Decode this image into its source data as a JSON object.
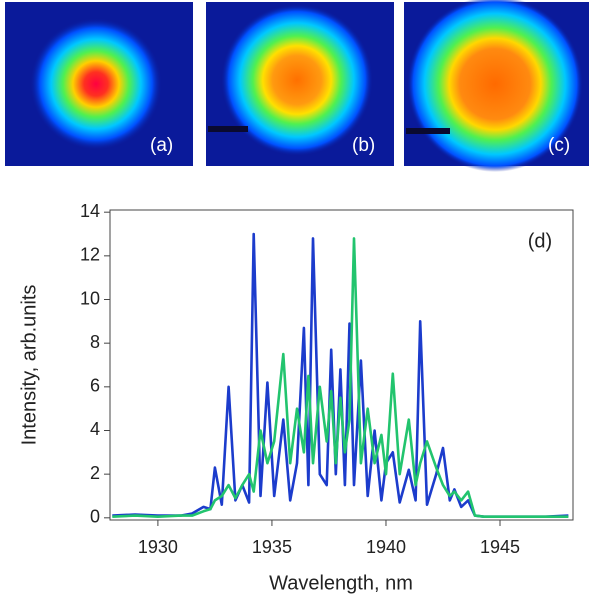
{
  "panels": [
    {
      "label": "(a)"
    },
    {
      "label": "(b)"
    },
    {
      "label": "(c)"
    }
  ],
  "chart_data": {
    "type": "line",
    "annotation": "(d)",
    "xlabel": "Wavelength, nm",
    "ylabel": "Intensity, arb.units",
    "x": [
      1928,
      1929,
      1930,
      1931,
      1931.5,
      1932,
      1932.3,
      1932.5,
      1932.8,
      1933.1,
      1933.4,
      1933.7,
      1934.0,
      1934.2,
      1934.5,
      1934.8,
      1935.1,
      1935.5,
      1935.8,
      1936.1,
      1936.4,
      1936.6,
      1936.8,
      1937.1,
      1937.4,
      1937.6,
      1937.8,
      1938.0,
      1938.2,
      1938.4,
      1938.6,
      1938.9,
      1939.2,
      1939.5,
      1939.8,
      1940.0,
      1940.3,
      1940.6,
      1941.0,
      1941.3,
      1941.5,
      1941.8,
      1942.2,
      1942.5,
      1942.8,
      1943.0,
      1943.3,
      1943.6,
      1943.9,
      1944.3,
      1945,
      1946,
      1947,
      1948
    ],
    "series": [
      {
        "color": "#1c3ccc",
        "values": [
          0.1,
          0.15,
          0.1,
          0.1,
          0.2,
          0.5,
          0.4,
          2.3,
          0.6,
          6.0,
          0.8,
          1.5,
          0.7,
          13.0,
          1.0,
          6.2,
          1.0,
          4.5,
          0.8,
          2.5,
          8.7,
          1.5,
          12.8,
          2.0,
          1.5,
          7.7,
          2.0,
          6.8,
          1.5,
          8.9,
          1.5,
          7.2,
          1.0,
          4.0,
          0.8,
          2.5,
          3.0,
          0.7,
          2.2,
          0.8,
          9.0,
          0.6,
          2.0,
          3.2,
          0.8,
          1.3,
          0.5,
          0.8,
          0.1,
          0.05,
          0.05,
          0.05,
          0.05,
          0.1
        ]
      },
      {
        "color": "#22c46e",
        "values": [
          0.05,
          0.1,
          0.05,
          0.1,
          0.1,
          0.3,
          0.4,
          0.8,
          1.0,
          1.5,
          0.9,
          1.5,
          2.0,
          1.2,
          4.0,
          2.5,
          3.5,
          7.5,
          2.5,
          5.0,
          3.0,
          6.5,
          2.5,
          6.0,
          3.5,
          5.8,
          2.5,
          5.5,
          3.0,
          4.5,
          12.8,
          2.5,
          5.0,
          2.5,
          3.8,
          2.0,
          6.6,
          2.0,
          4.5,
          1.5,
          2.5,
          3.5,
          2.3,
          1.5,
          1.0,
          1.2,
          0.8,
          1.2,
          0.1,
          0.05,
          0.05,
          0.05,
          0.05,
          0.05
        ]
      }
    ],
    "xlim": [
      1927.9,
      1948.2
    ],
    "ylim": [
      -0.1,
      14.1
    ],
    "xticks": [
      1930,
      1935,
      1940,
      1945
    ],
    "yticks": [
      0,
      2,
      4,
      6,
      8,
      10,
      12,
      14
    ]
  }
}
